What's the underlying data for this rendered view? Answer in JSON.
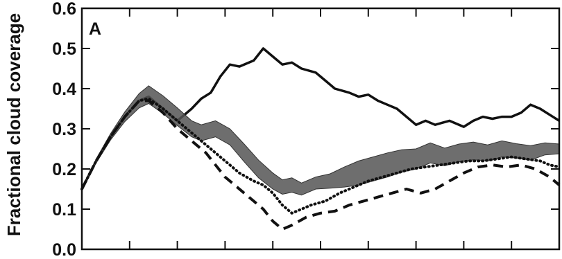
{
  "chart_data": {
    "type": "line",
    "title": "",
    "panel_label": "A",
    "xlabel": "",
    "ylabel": "Fractional cloud coverage",
    "ylim": [
      0.0,
      0.6
    ],
    "yticks": [
      "0.0",
      "0.1",
      "0.2",
      "0.3",
      "0.4",
      "0.5",
      "0.6"
    ],
    "xlim": [
      0,
      100
    ],
    "xtick_positions": [
      0,
      10,
      20,
      30,
      40,
      50,
      60,
      70,
      80,
      90,
      100
    ],
    "grid": false,
    "series": [
      {
        "style": "solid",
        "color": "#111111",
        "x": [
          0,
          3,
          6,
          9,
          12,
          14,
          17,
          20,
          23,
          25,
          27,
          29,
          31,
          33,
          36,
          38,
          40,
          42,
          44,
          46,
          49,
          51,
          53,
          56,
          58,
          60,
          62,
          64,
          66,
          68,
          70,
          72,
          74,
          77,
          80,
          82,
          84,
          86,
          88,
          90,
          92,
          94,
          96,
          98,
          100
        ],
        "y": [
          0.15,
          0.22,
          0.28,
          0.33,
          0.37,
          0.38,
          0.35,
          0.32,
          0.35,
          0.375,
          0.39,
          0.43,
          0.46,
          0.455,
          0.47,
          0.5,
          0.48,
          0.46,
          0.465,
          0.45,
          0.44,
          0.42,
          0.4,
          0.39,
          0.38,
          0.385,
          0.37,
          0.36,
          0.35,
          0.33,
          0.31,
          0.32,
          0.31,
          0.32,
          0.305,
          0.32,
          0.33,
          0.325,
          0.33,
          0.33,
          0.34,
          0.36,
          0.35,
          0.335,
          0.32
        ]
      },
      {
        "style": "band",
        "color": "#555555",
        "x": [
          0,
          3,
          6,
          9,
          12,
          14,
          17,
          20,
          23,
          25,
          28,
          31,
          34,
          37,
          40,
          42,
          44,
          46,
          49,
          52,
          55,
          58,
          61,
          64,
          67,
          70,
          73,
          76,
          79,
          82,
          85,
          88,
          91,
          94,
          97,
          100
        ],
        "y": [
          0.15,
          0.22,
          0.28,
          0.33,
          0.37,
          0.385,
          0.36,
          0.33,
          0.3,
          0.29,
          0.3,
          0.28,
          0.24,
          0.2,
          0.17,
          0.155,
          0.16,
          0.15,
          0.165,
          0.17,
          0.18,
          0.19,
          0.2,
          0.21,
          0.22,
          0.225,
          0.24,
          0.23,
          0.24,
          0.245,
          0.24,
          0.25,
          0.245,
          0.24,
          0.25,
          0.25
        ],
        "band_halfwidth": [
          0.0,
          0.005,
          0.008,
          0.012,
          0.018,
          0.022,
          0.022,
          0.022,
          0.02,
          0.02,
          0.02,
          0.02,
          0.022,
          0.022,
          0.02,
          0.018,
          0.018,
          0.015,
          0.015,
          0.018,
          0.025,
          0.03,
          0.03,
          0.03,
          0.028,
          0.025,
          0.025,
          0.022,
          0.022,
          0.022,
          0.02,
          0.02,
          0.018,
          0.018,
          0.015,
          0.012
        ]
      },
      {
        "style": "dotted",
        "color": "#111111",
        "x": [
          0,
          3,
          6,
          9,
          12,
          14,
          17,
          20,
          23,
          26,
          29,
          31,
          33,
          36,
          38,
          40,
          42,
          44,
          46,
          48,
          51,
          54,
          57,
          60,
          63,
          66,
          69,
          72,
          75,
          78,
          81,
          84,
          87,
          90,
          93,
          96,
          98,
          100
        ],
        "y": [
          0.15,
          0.22,
          0.28,
          0.33,
          0.37,
          0.375,
          0.35,
          0.32,
          0.29,
          0.26,
          0.23,
          0.21,
          0.19,
          0.17,
          0.16,
          0.14,
          0.11,
          0.09,
          0.1,
          0.11,
          0.12,
          0.14,
          0.155,
          0.17,
          0.18,
          0.19,
          0.2,
          0.205,
          0.21,
          0.215,
          0.22,
          0.22,
          0.225,
          0.23,
          0.225,
          0.22,
          0.21,
          0.205
        ]
      },
      {
        "style": "dashed",
        "color": "#111111",
        "x": [
          0,
          3,
          6,
          9,
          12,
          14,
          17,
          20,
          23,
          26,
          28,
          30,
          32,
          34,
          36,
          38,
          40,
          42,
          44,
          47,
          50,
          53,
          56,
          59,
          62,
          65,
          68,
          71,
          74,
          77,
          80,
          83,
          86,
          89,
          92,
          95,
          98,
          100
        ],
        "y": [
          0.15,
          0.22,
          0.28,
          0.33,
          0.37,
          0.37,
          0.34,
          0.3,
          0.27,
          0.24,
          0.21,
          0.18,
          0.16,
          0.14,
          0.12,
          0.1,
          0.07,
          0.05,
          0.06,
          0.08,
          0.09,
          0.095,
          0.11,
          0.12,
          0.13,
          0.14,
          0.15,
          0.14,
          0.15,
          0.17,
          0.19,
          0.205,
          0.21,
          0.205,
          0.21,
          0.2,
          0.18,
          0.16
        ]
      }
    ]
  }
}
